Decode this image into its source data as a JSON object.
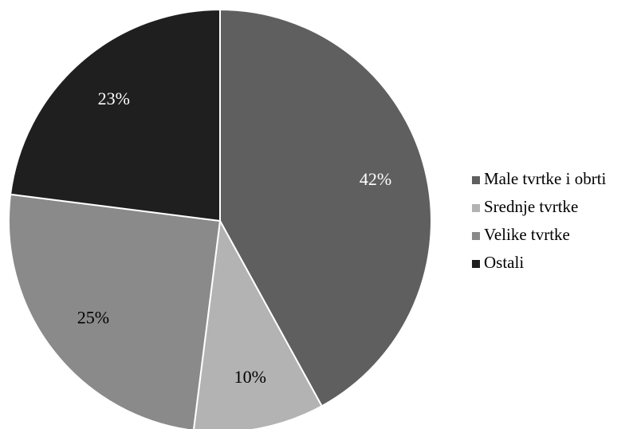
{
  "chart_data": {
    "type": "pie",
    "categories": [
      "Male tvrtke i obrti",
      "Srednje tvrtke",
      "Velike tvrtke",
      "Ostali"
    ],
    "values": [
      42,
      10,
      25,
      23
    ],
    "data_labels": [
      "42%",
      "10%",
      "25%",
      "23%"
    ],
    "colors": [
      "#5f5f5f",
      "#b3b3b3",
      "#8a8a8a",
      "#1f1f1f"
    ],
    "label_colors": [
      "#ffffff",
      "#000000",
      "#000000",
      "#ffffff"
    ],
    "start_angle_deg": 0,
    "direction": "clockwise",
    "legend_position": "right"
  }
}
